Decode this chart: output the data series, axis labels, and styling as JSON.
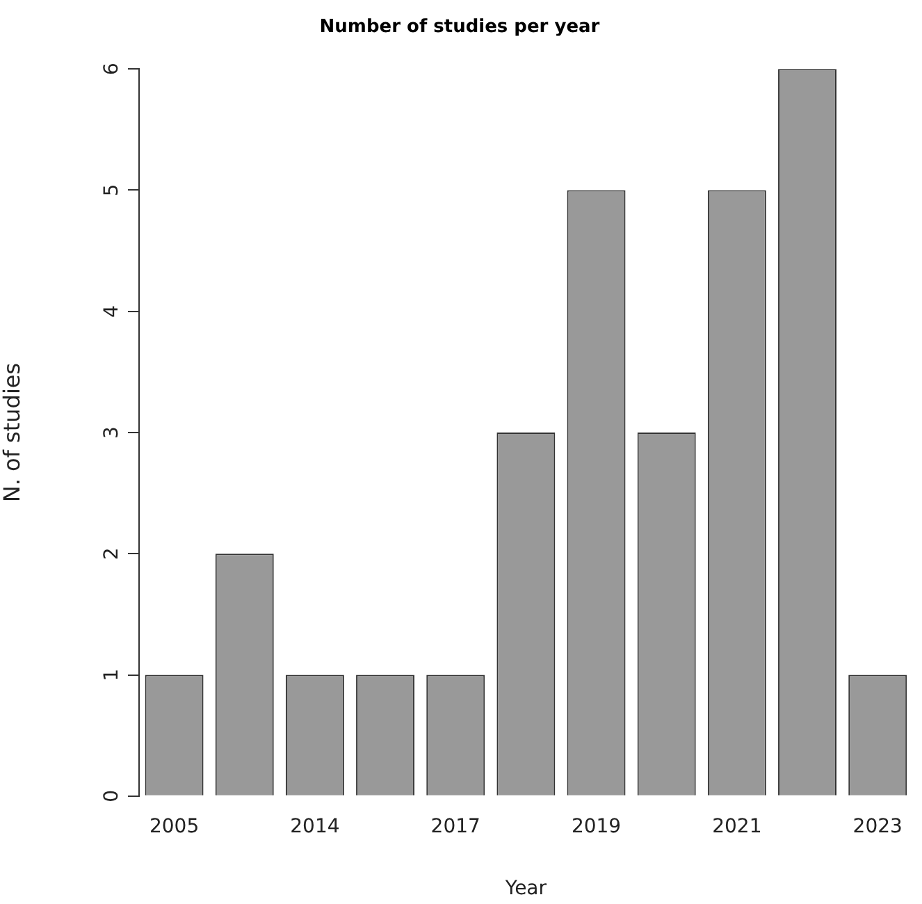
{
  "chart_data": {
    "type": "bar",
    "title": "Number of studies per year",
    "xlabel": "Year",
    "ylabel": "N. of studies",
    "categories": [
      "2005",
      null,
      "2014",
      null,
      "2017",
      null,
      "2019",
      null,
      "2021",
      null,
      "2023"
    ],
    "values": [
      1,
      2,
      1,
      1,
      1,
      3,
      5,
      3,
      5,
      6,
      1
    ],
    "color": "#999999",
    "ylim": [
      0,
      6
    ],
    "yticks": [
      0,
      1,
      2,
      3,
      4,
      5,
      6
    ],
    "grid": false,
    "legend": false
  }
}
